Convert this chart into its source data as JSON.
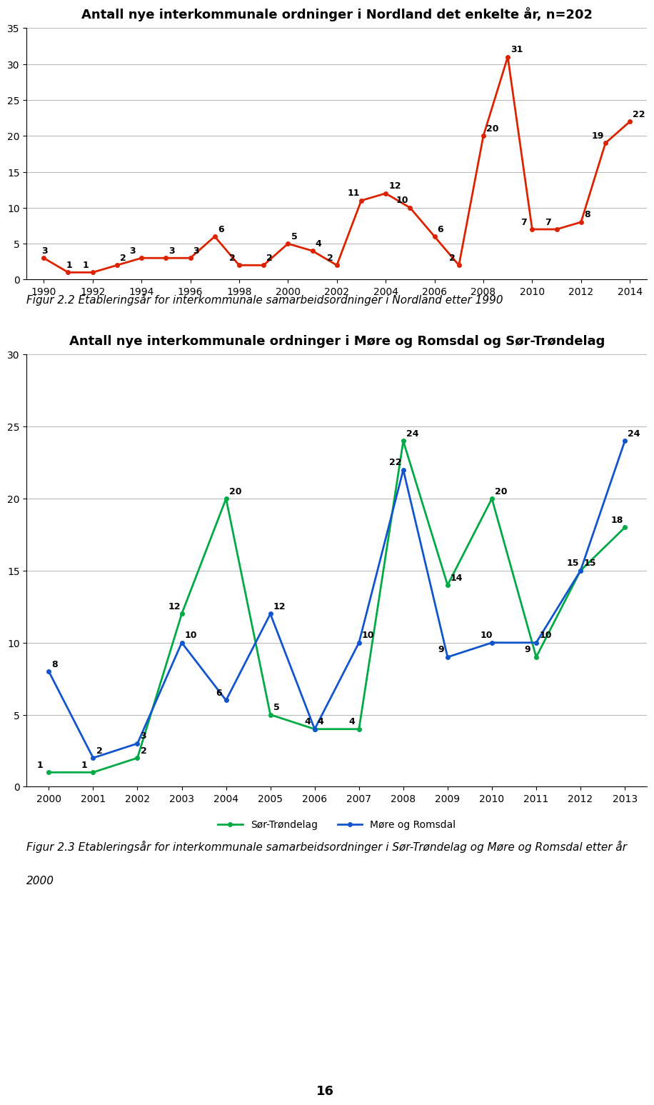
{
  "chart1": {
    "title": "Antall nye interkommunale ordninger i Nordland det enkelte år, n=202",
    "years": [
      1990,
      1991,
      1992,
      1993,
      1994,
      1995,
      1996,
      1997,
      1998,
      1999,
      2000,
      2001,
      2002,
      2003,
      2004,
      2005,
      2006,
      2007,
      2008,
      2009,
      2010,
      2011,
      2012,
      2013,
      2014
    ],
    "values": [
      3,
      1,
      1,
      2,
      3,
      3,
      3,
      6,
      2,
      2,
      5,
      4,
      2,
      11,
      12,
      10,
      6,
      2,
      20,
      31,
      7,
      7,
      8,
      19,
      22
    ],
    "color": "#dd2200",
    "ylim": [
      0,
      35
    ],
    "yticks": [
      0,
      5,
      10,
      15,
      20,
      25,
      30,
      35
    ],
    "xticks": [
      1990,
      1992,
      1994,
      1996,
      1998,
      2000,
      2002,
      2004,
      2006,
      2008,
      2010,
      2012,
      2014
    ],
    "marker": "o",
    "marker_size": 4,
    "line_width": 2.0,
    "caption": "Figur 2.2 Etableringsår for interkommunale samarbeidsordninger i Nordland etter 1990"
  },
  "chart2": {
    "title": "Antall nye interkommunale ordninger i Møre og Romsdal og Sør-Trøndelag",
    "years": [
      2000,
      2001,
      2002,
      2003,
      2004,
      2005,
      2006,
      2007,
      2008,
      2009,
      2010,
      2011,
      2012,
      2013
    ],
    "sor_trondelag": [
      1,
      1,
      2,
      12,
      20,
      5,
      4,
      4,
      24,
      14,
      20,
      9,
      15,
      18
    ],
    "more_romsdal": [
      8,
      2,
      3,
      10,
      6,
      12,
      4,
      10,
      22,
      9,
      10,
      10,
      15,
      24
    ],
    "color_sor": "#00aa44",
    "color_more": "#1155cc",
    "ylim": [
      0,
      30
    ],
    "yticks": [
      0,
      5,
      10,
      15,
      20,
      25,
      30
    ],
    "xticks": [
      2000,
      2001,
      2002,
      2003,
      2004,
      2005,
      2006,
      2007,
      2008,
      2009,
      2010,
      2011,
      2012,
      2013
    ],
    "marker": "o",
    "marker_size": 4,
    "line_width": 2.0,
    "legend_sor": "Sør-Trøndelag",
    "legend_more": "Møre og Romsdal",
    "caption_line1": "Figur 2.3 Etableringsår for interkommunale samarbeidsordninger i Sør-Trøndelag og Møre og Romsdal etter år",
    "caption_line2": "2000"
  },
  "page_number": "16",
  "bg_color": "#ffffff",
  "grid_color": "#bbbbbb",
  "text_color": "#000000",
  "label_fontsize": 9,
  "title_fontsize": 13,
  "tick_fontsize": 10,
  "caption_fontsize": 11
}
